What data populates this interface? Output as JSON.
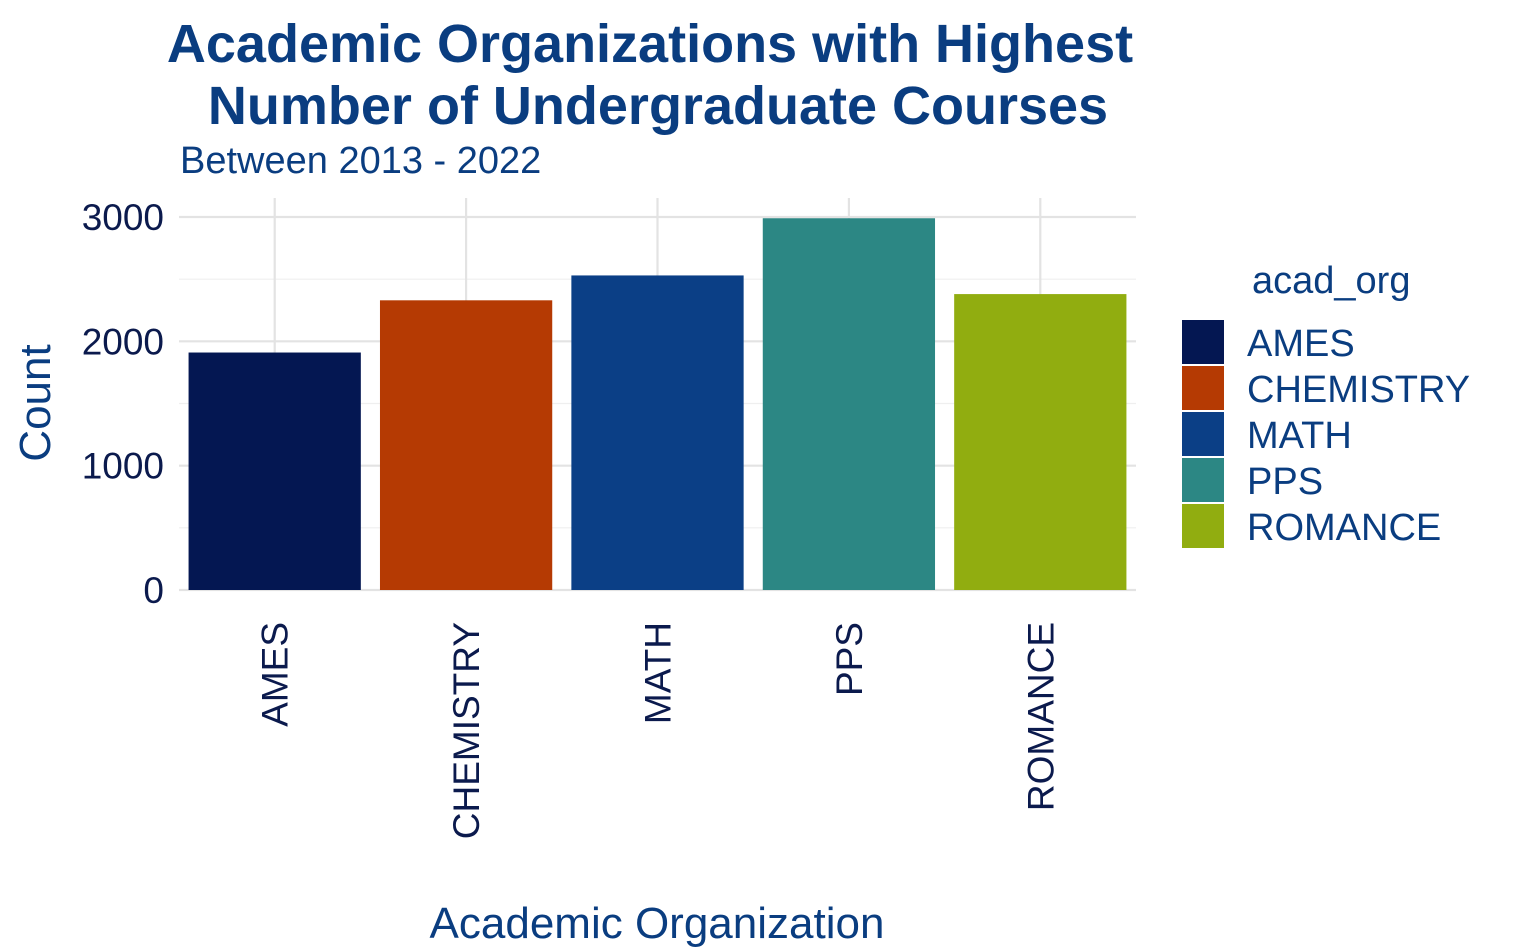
{
  "chart_data": {
    "type": "bar",
    "title_lines": [
      "Academic Organizations with Highest",
      "Number of Undergraduate Courses"
    ],
    "subtitle": "Between 2013 - 2022",
    "xlabel": "Academic Organization",
    "ylabel": "Count",
    "categories": [
      "AMES",
      "CHEMISTRY",
      "MATH",
      "PPS",
      "ROMANCE"
    ],
    "values": [
      1910,
      2330,
      2530,
      2990,
      2380
    ],
    "colors": [
      "#041752",
      "#b53a03",
      "#0b3f86",
      "#2c8784",
      "#91ad10"
    ],
    "ylim": [
      0,
      3000
    ],
    "yticks": [
      0,
      1000,
      2000,
      3000
    ],
    "ytick_labels": [
      "0",
      "1000",
      "2000",
      "3000"
    ],
    "grid": true,
    "legend": {
      "title": "acad_org",
      "placement": "right",
      "entries": [
        "AMES",
        "CHEMISTRY",
        "MATH",
        "PPS",
        "ROMANCE"
      ]
    }
  }
}
